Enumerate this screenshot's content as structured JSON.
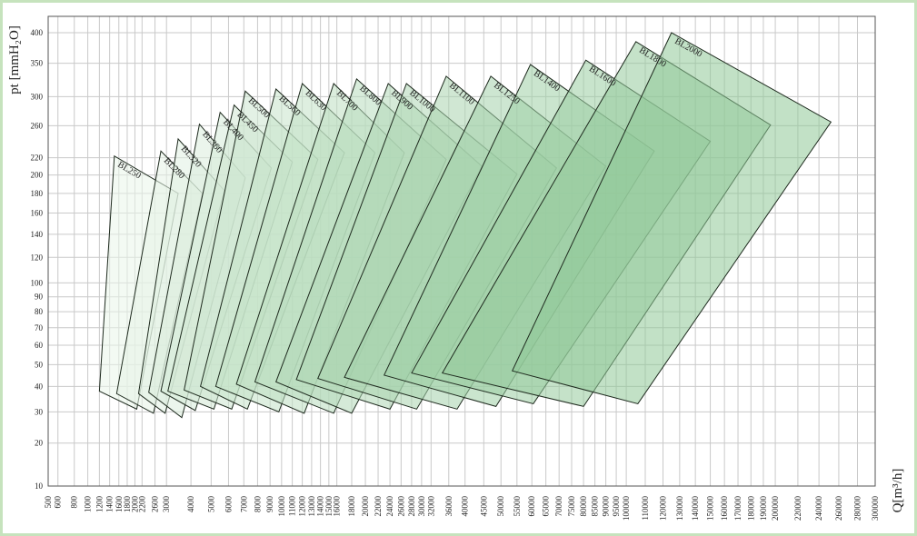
{
  "chart_data": {
    "type": "polygon",
    "y_label": "pt [mmH₂O]",
    "x_label": "Q[m³/h]",
    "xscale": {
      "type": "power",
      "exponent": 0.25
    },
    "yscale": {
      "type": "power",
      "exponent": 0.4
    },
    "xlim": [
      500,
      300000
    ],
    "ylim": [
      10,
      400
    ],
    "grid": true,
    "xticks": [
      500,
      600,
      800,
      1000,
      1200,
      1400,
      1600,
      1800,
      2000,
      2200,
      2600,
      3000,
      4000,
      5000,
      6000,
      7000,
      8000,
      9000,
      10000,
      11000,
      12000,
      13000,
      14000,
      15000,
      16000,
      18000,
      20000,
      22000,
      24000,
      26000,
      28000,
      30000,
      32000,
      36000,
      40000,
      45000,
      50000,
      55000,
      60000,
      65000,
      70000,
      75000,
      80000,
      85000,
      90000,
      95000,
      100000,
      110000,
      120000,
      130000,
      140000,
      150000,
      160000,
      170000,
      180000,
      190000,
      200000,
      220000,
      240000,
      260000,
      280000,
      300000
    ],
    "yticks": [
      10,
      20,
      30,
      40,
      50,
      60,
      70,
      80,
      90,
      100,
      120,
      140,
      160,
      180,
      200,
      220,
      260,
      300,
      350,
      400
    ],
    "series": [
      {
        "name": "BL250",
        "color": "#eaf5ea",
        "x": [
          1200,
          1500,
          3450,
          2050
        ],
        "values": [
          38,
          222,
          180,
          31
        ]
      },
      {
        "name": "BL280",
        "color": "#e5f2e5",
        "x": [
          1550,
          2800,
          4550,
          2550
        ],
        "values": [
          37,
          228,
          180,
          29.5
        ]
      },
      {
        "name": "BL320",
        "color": "#e0f0e1",
        "x": [
          2100,
          3450,
          5750,
          2950
        ],
        "values": [
          37,
          243,
          183,
          29.5
        ]
      },
      {
        "name": "BL360",
        "color": "#dbeddc",
        "x": [
          2400,
          4400,
          7100,
          3600
        ],
        "values": [
          37.5,
          262,
          197,
          28
        ]
      },
      {
        "name": "BL400",
        "color": "#d6ebd8",
        "x": [
          2800,
          5500,
          9100,
          4200
        ],
        "values": [
          38,
          278,
          208,
          30.5
        ]
      },
      {
        "name": "BL450",
        "color": "#d1e8d3",
        "x": [
          3050,
          6350,
          11000,
          5150
        ],
        "values": [
          38,
          288,
          215,
          31
        ]
      },
      {
        "name": "BL500",
        "color": "#cce6cf",
        "x": [
          3700,
          7100,
          13700,
          6200
        ],
        "values": [
          38.5,
          308,
          218,
          31
        ]
      },
      {
        "name": "BL560",
        "color": "#c7e3ca",
        "x": [
          4450,
          9500,
          17000,
          7250
        ],
        "values": [
          40,
          311,
          226,
          31
        ]
      },
      {
        "name": "BL630",
        "color": "#c2e1c6",
        "x": [
          5250,
          12000,
          21500,
          9750
        ],
        "values": [
          40,
          319,
          226,
          30
        ]
      },
      {
        "name": "BL700",
        "color": "#bddec1",
        "x": [
          6500,
          15600,
          26600,
          12200
        ],
        "values": [
          41,
          319,
          226,
          29.5
        ]
      },
      {
        "name": "BL800",
        "color": "#b8dcbd",
        "x": [
          7800,
          18700,
          35400,
          15600
        ],
        "values": [
          42,
          326,
          218,
          29.5
        ]
      },
      {
        "name": "BL900",
        "color": "#b3d9b8",
        "x": [
          9500,
          23700,
          44500,
          18000
        ],
        "values": [
          42,
          319,
          210,
          29.5
        ]
      },
      {
        "name": "BL1000",
        "color": "#aed7b4",
        "x": [
          11400,
          27000,
          55000,
          24000
        ],
        "values": [
          43,
          319,
          201,
          31
        ]
      },
      {
        "name": "BL1100",
        "color": "#a9d4af",
        "x": [
          13700,
          35400,
          69000,
          29000
        ],
        "values": [
          43.5,
          330,
          208,
          31
        ]
      },
      {
        "name": "BL1250",
        "color": "#a4d2ab",
        "x": [
          17000,
          47000,
          90000,
          38000
        ],
        "values": [
          44,
          330,
          210,
          31
        ]
      },
      {
        "name": "BL1400",
        "color": "#9fcfa6",
        "x": [
          23000,
          59500,
          115000,
          48500
        ],
        "values": [
          45,
          348,
          228,
          32
        ]
      },
      {
        "name": "BL1600",
        "color": "#9acda2",
        "x": [
          28000,
          81000,
          150000,
          60500
        ],
        "values": [
          46,
          355,
          240,
          33
        ]
      },
      {
        "name": "BL1800",
        "color": "#95ca9d",
        "x": [
          34500,
          105000,
          196000,
          80000
        ],
        "values": [
          46,
          385,
          261,
          32
        ]
      },
      {
        "name": "BL2000",
        "color": "#8fc898",
        "x": [
          53500,
          125000,
          252000,
          106000
        ],
        "values": [
          47,
          400,
          265,
          33
        ]
      }
    ]
  }
}
